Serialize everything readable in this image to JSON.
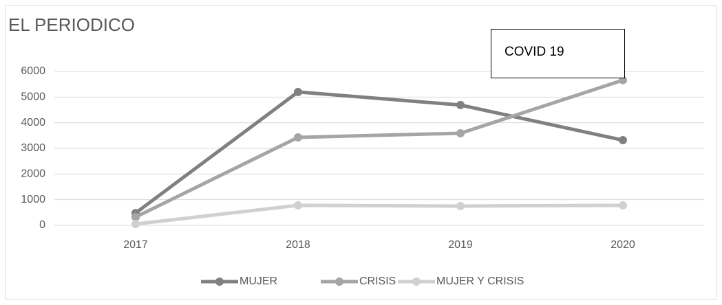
{
  "chart_data": {
    "type": "line",
    "title": "EL PERIODICO",
    "categories": [
      "2017",
      "2018",
      "2019",
      "2020"
    ],
    "series": [
      {
        "name": "MUJER",
        "color": "#808080",
        "values": [
          480,
          5200,
          4690,
          3320
        ]
      },
      {
        "name": "CRISIS",
        "color": "#a5a5a5",
        "values": [
          320,
          3430,
          3590,
          5660
        ]
      },
      {
        "name": "MUJER Y CRISIS",
        "color": "#d0d0d0",
        "values": [
          50,
          780,
          750,
          780
        ]
      }
    ],
    "ylim": [
      0,
      6000
    ],
    "yticks": [
      0,
      1000,
      2000,
      3000,
      4000,
      5000,
      6000
    ],
    "grid": true,
    "annotation": "COVID 19",
    "legend": "bottom"
  }
}
